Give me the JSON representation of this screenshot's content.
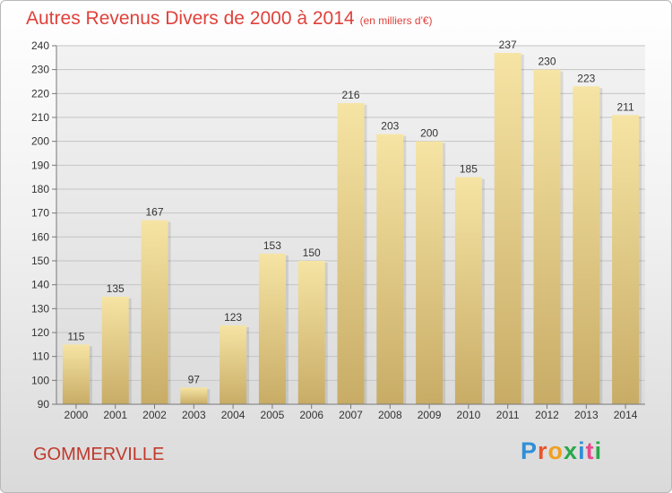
{
  "header": {
    "title": "Autres Revenus Divers de 2000 à 2014",
    "subtitle": "(en milliers d'€)"
  },
  "footer": {
    "place": "GOMMERVILLE",
    "logo_text": "Proxiti",
    "logo_letter_colors": [
      "#2f8fd8",
      "#e8542e",
      "#f0a020",
      "#2aa84a",
      "#2f8fd8",
      "#e84a8a",
      "#2aa84a"
    ]
  },
  "chart_data": {
    "type": "bar",
    "title": "Autres Revenus Divers de 2000 à 2014",
    "subtitle": "(en milliers d'€)",
    "categories": [
      "2000",
      "2001",
      "2002",
      "2003",
      "2004",
      "2005",
      "2006",
      "2007",
      "2008",
      "2009",
      "2010",
      "2011",
      "2012",
      "2013",
      "2014"
    ],
    "values": [
      115,
      135,
      167,
      97,
      123,
      153,
      150,
      216,
      203,
      200,
      185,
      237,
      230,
      223,
      211
    ],
    "ylim": [
      90,
      240
    ],
    "yticks": [
      90,
      100,
      110,
      120,
      130,
      140,
      150,
      160,
      170,
      180,
      190,
      200,
      210,
      220,
      230,
      240
    ],
    "grid": true,
    "bar_color_top": "#f6e4a4",
    "bar_color_bottom": "#c8ac66"
  }
}
